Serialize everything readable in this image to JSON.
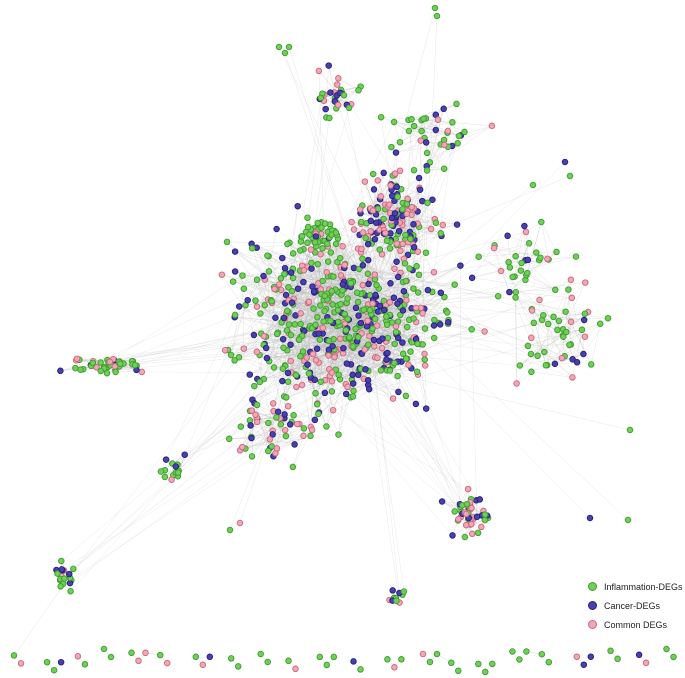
{
  "legend": {
    "items": [
      {
        "key": "inflammation",
        "label": "Inflammation-DEGs",
        "color": "#6fcf57",
        "stroke": "#3e9b2e"
      },
      {
        "key": "cancer",
        "label": "Cancer-DEGs",
        "color": "#4a3fb0",
        "stroke": "#27207a"
      },
      {
        "key": "common",
        "label": "Common DEGs",
        "color": "#f2a6b6",
        "stroke": "#c9687e"
      }
    ]
  },
  "network": {
    "edge_color": "#b8b8b8",
    "node_types": [
      "inflammation",
      "cancer",
      "common"
    ],
    "approx_node_counts": {
      "inflammation": 620,
      "cancer": 260,
      "common": 240
    }
  }
}
